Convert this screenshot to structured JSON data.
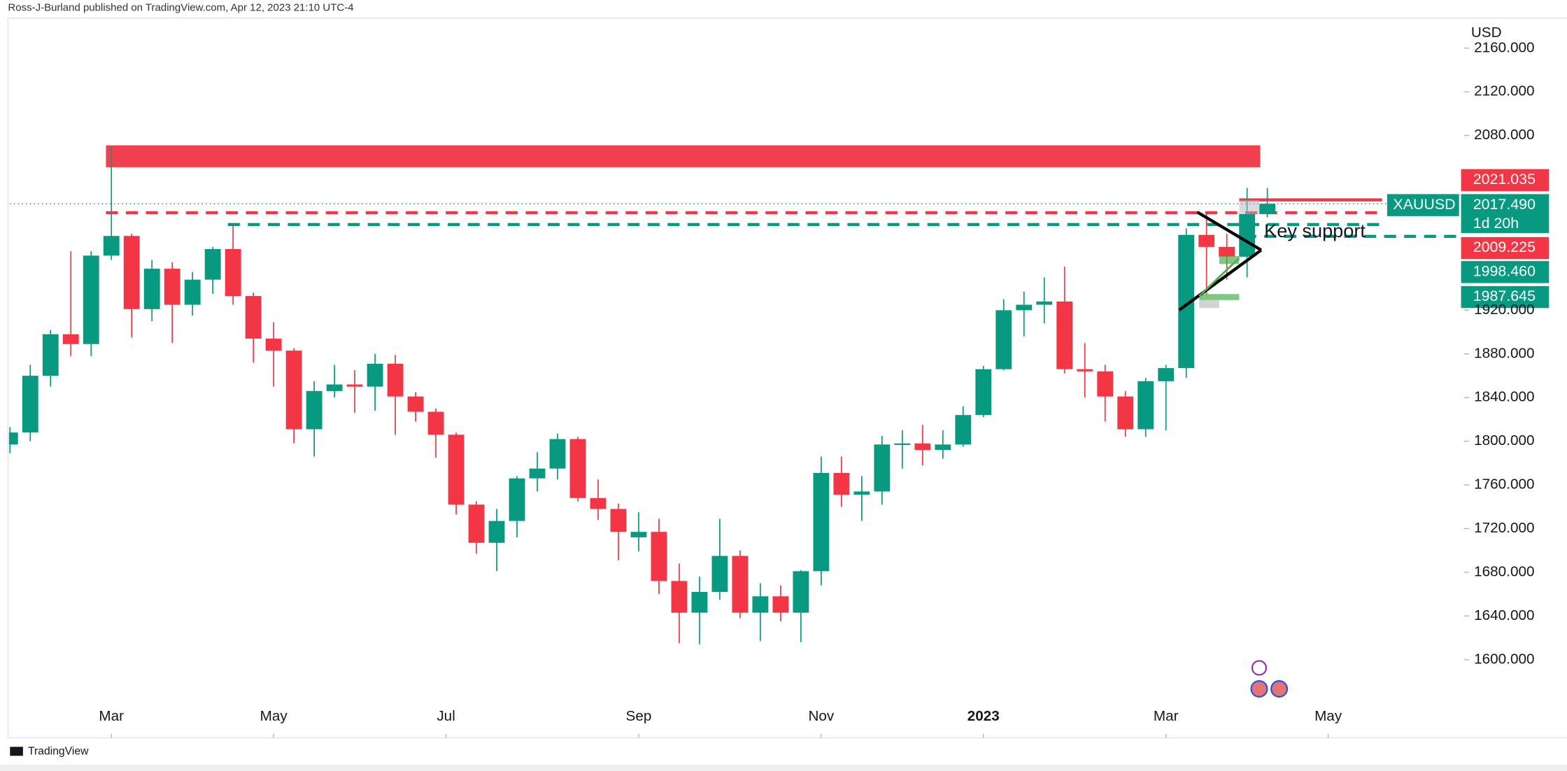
{
  "chart_data": {
    "type": "candlestick",
    "header": "Ross-J-Burland published on TradingView.com, Apr 12, 2023 21:10 UTC-4",
    "currency": "USD",
    "brand": "TradingView",
    "annotation": "Key support",
    "up_color": "#089981",
    "down_color": "#f23645",
    "open": [
      1797,
      1808,
      1860,
      1898,
      1889,
      1970,
      1988,
      1921,
      1958,
      1925,
      1948,
      1976,
      1933,
      1894,
      1883,
      1811,
      1846,
      1852,
      1850,
      1871,
      1841,
      1827,
      1806,
      1742,
      1707,
      1727,
      1766,
      1775,
      1802,
      1748,
      1738,
      1712,
      1717,
      1672,
      1643,
      1662,
      1695,
      1643,
      1658,
      1643,
      1681,
      1771,
      1751,
      1754,
      1797,
      1798,
      1792,
      1797,
      1824,
      1866,
      1920,
      1925,
      1928,
      1866,
      1864,
      1841,
      1811,
      1855,
      1867,
      1989,
      1978,
      1969,
      2008
    ],
    "high": [
      1813,
      1870,
      1902,
      1974,
      1974,
      2070,
      1990,
      1966,
      1964,
      1955,
      1978,
      1998,
      1936,
      1909,
      1885,
      1855,
      1870,
      1865,
      1880,
      1879,
      1845,
      1830,
      1808,
      1745,
      1738,
      1768,
      1790,
      1807,
      1804,
      1765,
      1743,
      1735,
      1729,
      1688,
      1676,
      1729,
      1700,
      1670,
      1668,
      1682,
      1786,
      1786,
      1768,
      1805,
      1810,
      1815,
      1810,
      1832,
      1869,
      1930,
      1937,
      1950,
      1960,
      1890,
      1870,
      1846,
      1858,
      1870,
      1995,
      2009,
      1990,
      2032,
      2032
    ],
    "low": [
      1789,
      1800,
      1850,
      1878,
      1878,
      1966,
      1895,
      1910,
      1890,
      1915,
      1935,
      1925,
      1872,
      1850,
      1798,
      1786,
      1840,
      1826,
      1828,
      1806,
      1818,
      1785,
      1733,
      1697,
      1681,
      1712,
      1754,
      1765,
      1745,
      1728,
      1691,
      1699,
      1660,
      1615,
      1614,
      1655,
      1638,
      1617,
      1635,
      1616,
      1668,
      1740,
      1727,
      1742,
      1775,
      1778,
      1784,
      1795,
      1822,
      1865,
      1896,
      1908,
      1862,
      1840,
      1818,
      1804,
      1804,
      1810,
      1858,
      1934,
      1948,
      1950,
      2005
    ],
    "close": [
      1808,
      1860,
      1898,
      1889,
      1970,
      1988,
      1921,
      1958,
      1925,
      1948,
      1976,
      1933,
      1894,
      1883,
      1811,
      1846,
      1852,
      1850,
      1871,
      1841,
      1827,
      1806,
      1742,
      1707,
      1727,
      1766,
      1775,
      1802,
      1748,
      1738,
      1717,
      1717,
      1672,
      1643,
      1662,
      1695,
      1643,
      1658,
      1643,
      1681,
      1771,
      1751,
      1754,
      1797,
      1798,
      1792,
      1797,
      1824,
      1866,
      1920,
      1925,
      1928,
      1866,
      1864,
      1841,
      1811,
      1855,
      1867,
      1989,
      1978,
      1969,
      2008,
      2017.49
    ],
    "xlim": [
      0,
      71.7
    ],
    "xticks": [
      {
        "value": 5,
        "label": "Mar"
      },
      {
        "value": 13,
        "label": "May"
      },
      {
        "value": 21.5,
        "label": "Jul"
      },
      {
        "value": 31,
        "label": "Sep"
      },
      {
        "value": 40,
        "label": "Nov"
      },
      {
        "value": 48,
        "label": "2023"
      },
      {
        "value": 57,
        "label": "Mar"
      },
      {
        "value": 65,
        "label": "May"
      }
    ],
    "ylim": [
      1528.4,
      2203.9
    ],
    "yticks": [
      {
        "value": 2160,
        "label": "2160.000"
      },
      {
        "value": 2120,
        "label": "2120.000"
      },
      {
        "value": 2080,
        "label": "2080.000"
      },
      {
        "value": 1920,
        "label": "1920.000"
      },
      {
        "value": 1880,
        "label": "1880.000"
      },
      {
        "value": 1840,
        "label": "1840.000"
      },
      {
        "value": 1800,
        "label": "1800.000"
      },
      {
        "value": 1760,
        "label": "1760.000"
      },
      {
        "value": 1720,
        "label": "1720.000"
      },
      {
        "value": 1680,
        "label": "1680.000"
      },
      {
        "value": 1640,
        "label": "1640.000"
      },
      {
        "value": 1600,
        "label": "1600.000"
      }
    ],
    "zone": {
      "low": 2051,
      "high": 2071,
      "color": "#f23645"
    },
    "price_tags": [
      {
        "value": 2021.035,
        "color": "#f23645"
      },
      {
        "value": 2017.49,
        "label": "2017.490",
        "color": "#089981",
        "symbol": "XAUUSD",
        "countdown": "1d 20h"
      },
      {
        "value": 2009.225,
        "color": "#f23645"
      },
      {
        "value": 1998.46,
        "label": "1998.460",
        "color": "#089981"
      },
      {
        "value": 1987.645,
        "color": "#089981"
      }
    ]
  }
}
